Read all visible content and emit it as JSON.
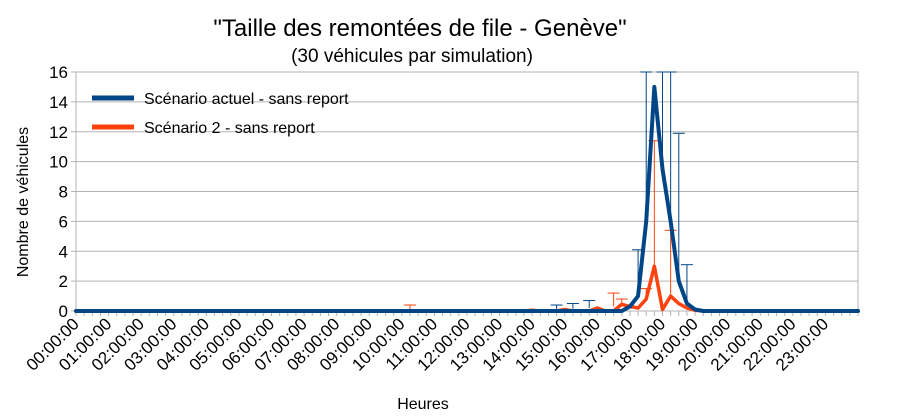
{
  "chart_data": {
    "type": "line",
    "title": "\"Taille des remontées de file - Genève\"",
    "subtitle": "(30 véhicules par simulation)",
    "xlabel": "Heures",
    "ylabel": "Nombre de véhicules",
    "ylim": [
      0,
      16
    ],
    "yticks": [
      "0",
      "2",
      "4",
      "6",
      "8",
      "10",
      "12",
      "14",
      "16"
    ],
    "grid": "horizontal",
    "legend_position": "top-left",
    "x_tick_labels": [
      "00:00:00",
      "01:00:00",
      "02:00:00",
      "03:00:00",
      "04:00:00",
      "05:00:00",
      "06:00:00",
      "07:00:00",
      "08:00:00",
      "09:00:00",
      "10:00:00",
      "11:00:00",
      "12:00:00",
      "13:00:00",
      "14:00:00",
      "15:00:00",
      "16:00:00",
      "17:00:00",
      "18:00:00",
      "19:00:00",
      "20:00:00",
      "21:00:00",
      "22:00:00",
      "23:00:00"
    ],
    "series": [
      {
        "name": "Scénario actuel - sans report",
        "color": "#004586",
        "points": [
          {
            "x": "17:00:00",
            "y": 0.3
          },
          {
            "x": "17:15:00",
            "y": 1.0
          },
          {
            "x": "17:30:00",
            "y": 6.0
          },
          {
            "x": "17:45:00",
            "y": 15.0
          },
          {
            "x": "18:00:00",
            "y": 9.5
          },
          {
            "x": "18:15:00",
            "y": 6.0
          },
          {
            "x": "18:30:00",
            "y": 2.0
          },
          {
            "x": "18:45:00",
            "y": 0.5
          },
          {
            "x": "19:00:00",
            "y": 0.1
          }
        ],
        "error_bars": [
          {
            "x": "14:45:00",
            "y": 0.1,
            "high": 0.4
          },
          {
            "x": "15:15:00",
            "y": 0.15,
            "high": 0.5
          },
          {
            "x": "15:45:00",
            "y": 0.2,
            "high": 0.7
          },
          {
            "x": "17:15:00",
            "y": 1.0,
            "high": 4.1
          },
          {
            "x": "17:30:00",
            "y": 6.0,
            "high": 16
          },
          {
            "x": "18:00:00",
            "y": 9.5,
            "high": 16
          },
          {
            "x": "18:15:00",
            "y": 6.0,
            "high": 16
          },
          {
            "x": "18:30:00",
            "y": 2.0,
            "high": 11.9
          },
          {
            "x": "18:45:00",
            "y": 0.5,
            "high": 3.1
          }
        ]
      },
      {
        "name": "Scénario 2 - sans report",
        "color": "#ff420e",
        "points": [
          {
            "x": "14:00:00",
            "y": 0.05
          },
          {
            "x": "15:00:00",
            "y": 0.1
          },
          {
            "x": "16:00:00",
            "y": 0.2
          },
          {
            "x": "16:45:00",
            "y": 0.45
          },
          {
            "x": "17:00:00",
            "y": 0.3
          },
          {
            "x": "17:15:00",
            "y": 0.2
          },
          {
            "x": "17:30:00",
            "y": 0.8
          },
          {
            "x": "17:45:00",
            "y": 3.0
          },
          {
            "x": "18:00:00",
            "y": 0.1
          },
          {
            "x": "18:15:00",
            "y": 1.0
          },
          {
            "x": "18:30:00",
            "y": 0.5
          },
          {
            "x": "18:45:00",
            "y": 0.2
          },
          {
            "x": "19:00:00",
            "y": 0.05
          }
        ],
        "error_bars": [
          {
            "x": "10:15:00",
            "y": 0.05,
            "high": 0.4
          },
          {
            "x": "16:30:00",
            "y": 0.3,
            "high": 1.2
          },
          {
            "x": "16:45:00",
            "y": 0.45,
            "high": 0.8
          },
          {
            "x": "17:30:00",
            "y": 0.8,
            "high": 1.5
          },
          {
            "x": "17:45:00",
            "y": 3.0,
            "high": 11.4
          },
          {
            "x": "18:15:00",
            "y": 1.0,
            "high": 5.4
          }
        ]
      }
    ]
  }
}
